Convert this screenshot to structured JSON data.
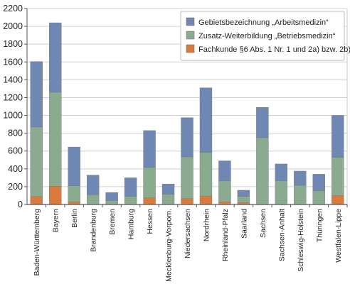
{
  "chart_data": {
    "type": "bar",
    "stacked": true,
    "categories": [
      "Baden-Württemberg",
      "Bayern",
      "Berlin",
      "Brandenburg",
      "Bremen",
      "Hamburg",
      "Hessen",
      "Mecklenburg-Vorpom.",
      "Niedersachsen",
      "Nordrhein",
      "Rheinland-Pfalz",
      "Saarland",
      "Sachsen",
      "Sachsen-Anhalt",
      "Schleswig-Holstein",
      "Thüringen",
      "Westfalen-Lippe"
    ],
    "series": [
      {
        "name": "Fachkunde §6 Abs. 1 Nr. 1 und 2a) bzw. 2b)",
        "color": "#d97a3e",
        "values": [
          90,
          205,
          30,
          0,
          0,
          0,
          75,
          0,
          65,
          95,
          30,
          20,
          0,
          0,
          0,
          0,
          100
        ]
      },
      {
        "name": "Zusatz-Weiterbildung „Betriebsmedizin“",
        "color": "#8bab91",
        "values": [
          780,
          1055,
          180,
          110,
          45,
          90,
          340,
          115,
          470,
          490,
          235,
          70,
          750,
          265,
          215,
          155,
          430
        ]
      },
      {
        "name": "Gebietsbezeichnung „Arbeitsmedizin“",
        "color": "#6e87b3",
        "values": [
          735,
          780,
          435,
          220,
          90,
          210,
          415,
          115,
          440,
          725,
          225,
          70,
          340,
          190,
          160,
          185,
          470
        ]
      }
    ],
    "legend_order": [
      2,
      1,
      0
    ],
    "legend_position": "top-right",
    "ylim": [
      0,
      2200
    ],
    "yticks": [
      0,
      200,
      400,
      600,
      800,
      1000,
      1200,
      1400,
      1600,
      1800,
      2000,
      2200
    ],
    "grid": true,
    "title": "",
    "xlabel": "",
    "ylabel": ""
  }
}
